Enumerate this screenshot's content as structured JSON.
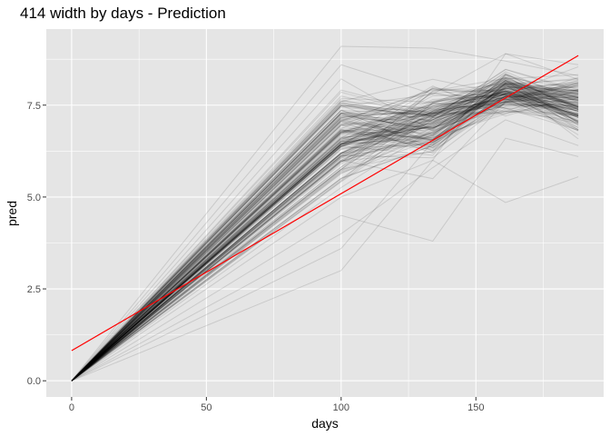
{
  "chart_data": {
    "type": "line",
    "title": "414 width by days - Prediction",
    "xlabel": "days",
    "ylabel": "pred",
    "xlim": [
      -9.4,
      197.4
    ],
    "ylim": [
      -0.44,
      9.57
    ],
    "x_ticks": [
      0,
      50,
      100,
      150
    ],
    "x_tick_labels": [
      "0",
      "50",
      "100",
      "150"
    ],
    "y_ticks": [
      0,
      2.5,
      5,
      7.5
    ],
    "y_tick_labels": [
      "0.0",
      "2.5",
      "5.0",
      "7.5"
    ],
    "grid": true,
    "legend": "none",
    "series_color": "#000000",
    "series_opacity": 0.12,
    "fit_color": "#ff0000",
    "panel_color": "#e5e5e5",
    "grid_color": "#ffffff",
    "x": [
      0,
      100,
      134,
      161,
      188
    ],
    "series_count": 170,
    "series_examples": [
      {
        "values": [
          0,
          9.1,
          9.05,
          8.7,
          8.3
        ]
      },
      {
        "values": [
          0,
          8.6,
          7.8,
          8.9,
          8.6
        ]
      },
      {
        "values": [
          0,
          7.5,
          7.2,
          8.1,
          7.7
        ]
      },
      {
        "values": [
          0,
          7.0,
          6.8,
          7.9,
          7.4
        ]
      },
      {
        "values": [
          0,
          6.5,
          7.3,
          8.2,
          7.2
        ]
      },
      {
        "values": [
          0,
          6.0,
          5.5,
          7.6,
          6.8
        ]
      },
      {
        "values": [
          0,
          5.5,
          6.4,
          8.0,
          7.9
        ]
      },
      {
        "values": [
          0,
          5.0,
          6.0,
          4.85,
          5.55
        ]
      },
      {
        "values": [
          0,
          4.5,
          3.8,
          6.6,
          6.1
        ]
      },
      {
        "values": [
          0,
          4.0,
          5.8,
          7.1,
          6.4
        ]
      },
      {
        "values": [
          0,
          3.6,
          6.5,
          7.4,
          7.0
        ]
      },
      {
        "values": [
          0,
          3.0,
          6.0,
          8.9,
          8.2
        ]
      }
    ],
    "fit_line": {
      "x": [
        0,
        188
      ],
      "y": [
        0.82,
        8.85
      ]
    }
  }
}
